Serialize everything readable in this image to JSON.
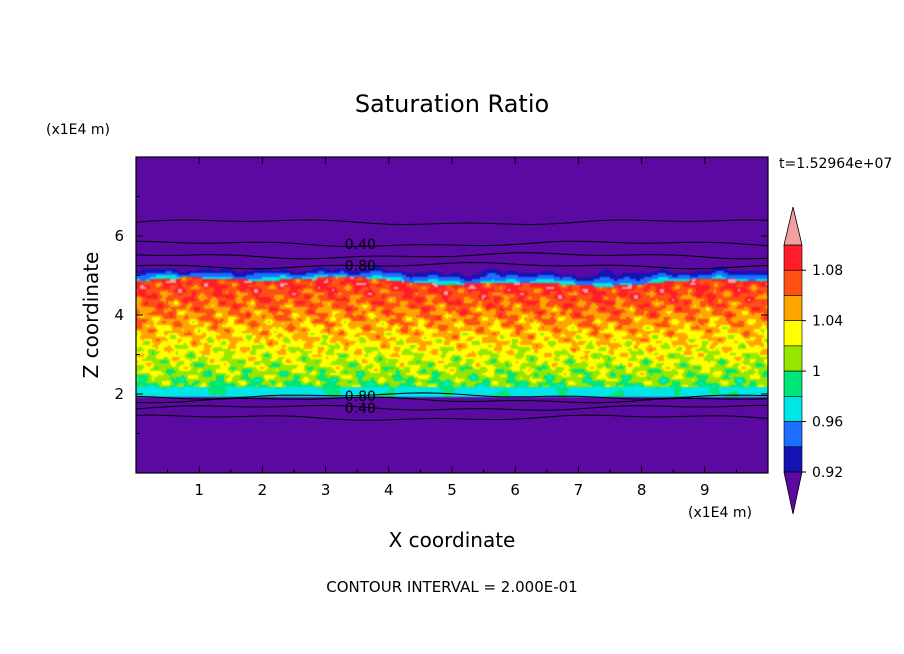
{
  "chart_data": {
    "type": "heatmap",
    "title": "Saturation Ratio",
    "xlabel": "X coordinate",
    "ylabel": "Z coordinate",
    "x_unit": "(x1E4 m)",
    "y_unit": "(x1E4 m)",
    "xlim": [
      0,
      10
    ],
    "ylim": [
      0,
      8
    ],
    "xticks": [
      "1",
      "2",
      "3",
      "4",
      "5",
      "6",
      "7",
      "8",
      "9"
    ],
    "yticks": [
      "2",
      "4",
      "6"
    ],
    "time_label": "t=1.52964e+07",
    "footer": "CONTOUR INTERVAL = 2.000E-01",
    "contour_labels": [
      {
        "text": "0.40",
        "x": 3.55,
        "z": 5.8
      },
      {
        "text": "0.80",
        "x": 3.55,
        "z": 5.25
      },
      {
        "text": "0.80",
        "x": 3.55,
        "z": 1.95
      },
      {
        "text": "0.40",
        "x": 3.55,
        "z": 1.65
      }
    ],
    "colorbar": {
      "tick_labels": [
        "1.08",
        "1.04",
        "1",
        "0.96",
        "0.92"
      ],
      "bins": [
        {
          "max": 0.92,
          "color": "#5a0aa0"
        },
        {
          "max": 0.94,
          "color": "#1414b4"
        },
        {
          "max": 0.96,
          "color": "#1e6eff"
        },
        {
          "max": 0.98,
          "color": "#00e6e6"
        },
        {
          "max": 1.0,
          "color": "#00e678"
        },
        {
          "max": 1.02,
          "color": "#96e600"
        },
        {
          "max": 1.04,
          "color": "#ffff00"
        },
        {
          "max": 1.06,
          "color": "#ffa500"
        },
        {
          "max": 1.08,
          "color": "#ff5014"
        },
        {
          "max": 1.1,
          "color": "#ff1e28"
        },
        {
          "max": 9.99,
          "color": "#f0a0a0"
        }
      ]
    }
  }
}
